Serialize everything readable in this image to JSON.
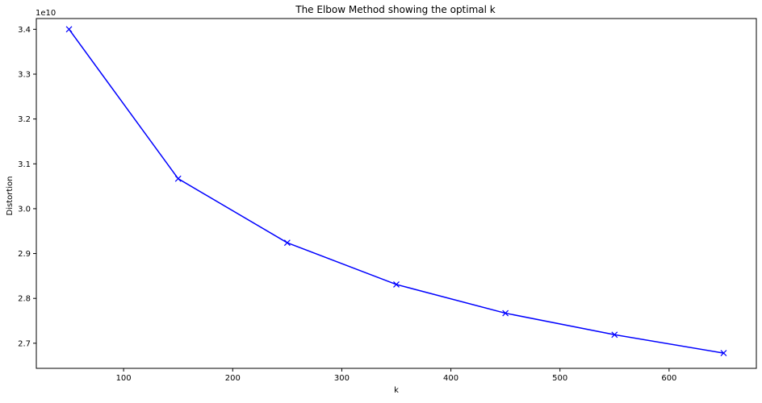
{
  "chart_data": {
    "type": "line",
    "title": "The Elbow Method showing the optimal k",
    "xlabel": "k",
    "ylabel": "Distortion",
    "y_offset_label": "1e10",
    "y_scale_factor": 10000000000,
    "x": [
      50,
      150,
      250,
      350,
      450,
      550,
      650
    ],
    "series": [
      {
        "values": [
          34000000000,
          30670000000,
          29240000000,
          28310000000,
          27670000000,
          27190000000,
          26780000000
        ],
        "color": "#0000ff",
        "marker": "x-icon"
      }
    ],
    "xlim": [
      20,
      680
    ],
    "ylim": [
      26440000000,
      34240000000
    ],
    "xticks": [
      100,
      200,
      300,
      400,
      500,
      600
    ],
    "yticks": [
      27000000000,
      28000000000,
      29000000000,
      30000000000,
      31000000000,
      32000000000,
      33000000000,
      34000000000
    ],
    "ytick_labels": [
      "2.7",
      "2.8",
      "2.9",
      "3.0",
      "3.1",
      "3.2",
      "3.3",
      "3.4"
    ],
    "grid": false,
    "legend": "none"
  }
}
